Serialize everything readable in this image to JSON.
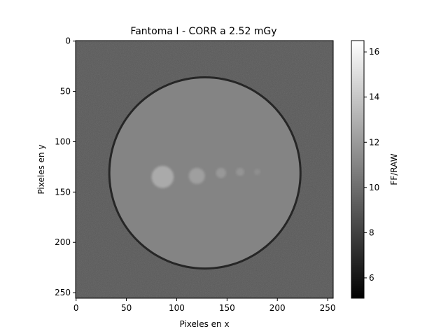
{
  "chart_data": {
    "type": "heatmap",
    "title": "Fantoma I - CORR a 2.52 mGy",
    "xlabel": "Pixeles en x",
    "ylabel": "Pixeles en y",
    "xlim": [
      0,
      255
    ],
    "ylim": [
      255,
      0
    ],
    "x_ticks": [
      0,
      50,
      100,
      150,
      200,
      250
    ],
    "y_ticks": [
      0,
      50,
      100,
      150,
      200,
      250
    ],
    "image_size": [
      256,
      256
    ],
    "colormap": "gray",
    "colorbar": {
      "label": "FF/RAW",
      "range": [
        5.1,
        16.5
      ],
      "ticks": [
        6,
        8,
        10,
        12,
        14,
        16
      ]
    },
    "regions": [
      {
        "name": "background",
        "value": 9.0
      },
      {
        "name": "phantom disk",
        "center_x": 128,
        "center_y": 131,
        "radius": 95,
        "value": 11.0
      },
      {
        "name": "disk rim",
        "value": 6.8
      },
      {
        "name": "insert 1",
        "center_x": 86,
        "center_y": 135,
        "radius": 11,
        "value": 12.7
      },
      {
        "name": "insert 2",
        "center_x": 120,
        "center_y": 134,
        "radius": 8,
        "value": 12.2
      },
      {
        "name": "insert 3",
        "center_x": 144,
        "center_y": 131,
        "radius": 5,
        "value": 11.9
      },
      {
        "name": "insert 4",
        "center_x": 163,
        "center_y": 130,
        "radius": 4,
        "value": 11.7
      },
      {
        "name": "insert 5",
        "center_x": 180,
        "center_y": 130,
        "radius": 3,
        "value": 11.5
      }
    ],
    "grid": false
  }
}
